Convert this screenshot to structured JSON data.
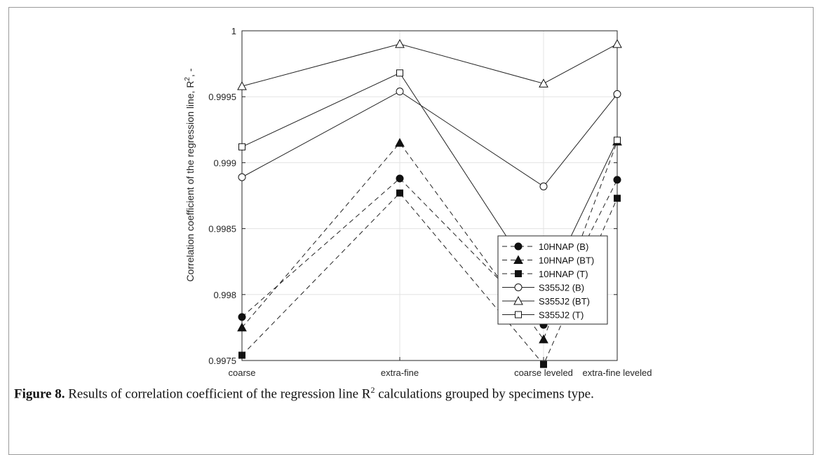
{
  "chart_data": {
    "type": "line",
    "categories": [
      "coarse",
      "extra-fine",
      "coarse leveled",
      "extra-fine leveled"
    ],
    "ylabel": "Correlation coefficient of the regression line, R",
    "ylabel_sup": "2",
    "ylabel_suffix": ", -",
    "ylim": [
      0.9975,
      1
    ],
    "yticks": [
      {
        "v": 0.9975,
        "label": "0.9975"
      },
      {
        "v": 0.998,
        "label": "0.998"
      },
      {
        "v": 0.9985,
        "label": "0.9985"
      },
      {
        "v": 0.999,
        "label": "0.999"
      },
      {
        "v": 0.9995,
        "label": "0.9995"
      },
      {
        "v": 1,
        "label": "1"
      }
    ],
    "grid": true,
    "legend_position": "inside lower-right",
    "series": [
      {
        "name": "10HNAP (B)",
        "marker": "circle",
        "filled": true,
        "dashed": true,
        "values": [
          0.99783,
          0.99888,
          0.99777,
          0.99887
        ]
      },
      {
        "name": "10HNAP (BT)",
        "marker": "triangle",
        "filled": true,
        "dashed": true,
        "values": [
          0.99775,
          0.99915,
          0.99766,
          0.99916
        ]
      },
      {
        "name": "10HNAP (T)",
        "marker": "square",
        "filled": true,
        "dashed": true,
        "values": [
          0.99754,
          0.99877,
          0.99747,
          0.99873
        ]
      },
      {
        "name": "S355J2 (B)",
        "marker": "circle",
        "filled": false,
        "dashed": false,
        "values": [
          0.99889,
          0.99954,
          0.99882,
          0.99952
        ]
      },
      {
        "name": "S355J2 (BT)",
        "marker": "triangle",
        "filled": false,
        "dashed": false,
        "values": [
          0.99958,
          0.9999,
          0.9996,
          0.9999
        ]
      },
      {
        "name": "S355J2 (T)",
        "marker": "square",
        "filled": false,
        "dashed": false,
        "values": [
          0.99912,
          0.99968,
          0.99801,
          0.99917
        ]
      }
    ]
  },
  "caption": {
    "label": "Figure 8.",
    "text": " Results of correlation coefficient of the regression line R",
    "sup": "2",
    "text_end": " calculations grouped by specimens type."
  }
}
